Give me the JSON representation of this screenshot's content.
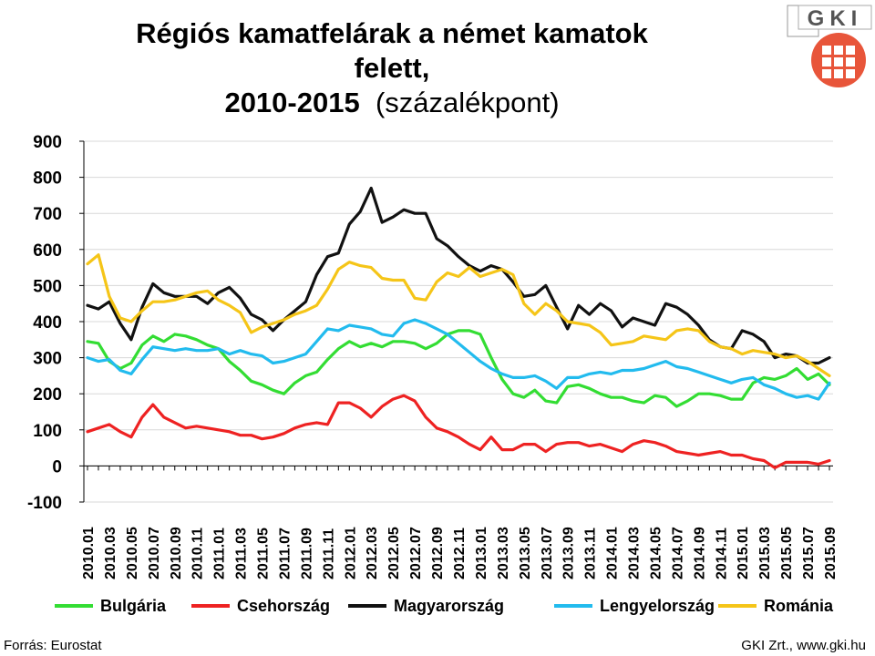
{
  "title_line1": "Régiós kamatfelárak a német kamatok felett,",
  "title_line2_bold": "2010-2015",
  "title_line2_rest": "(százalékpont)",
  "logo": {
    "text": "GKI",
    "icon": "gki-logo-icon",
    "accent": "#e8553a"
  },
  "source": "Forrás: Eurostat",
  "credit": "GKI Zrt., www.gki.hu",
  "chart_data": {
    "type": "line",
    "ylim": [
      -100,
      900
    ],
    "yticks": [
      "900",
      "800",
      "700",
      "600",
      "500",
      "400",
      "300",
      "200",
      "100",
      "0",
      "-100"
    ],
    "ytick_values": [
      900,
      800,
      700,
      600,
      500,
      400,
      300,
      200,
      100,
      0,
      -100
    ],
    "xtick_labels": [
      "2010.01",
      "2010.03",
      "2010.05",
      "2010.07",
      "2010.09",
      "2010.11",
      "2011.01",
      "2011.03",
      "2011.05",
      "2011.07",
      "2011.09",
      "2011.11",
      "2012.01",
      "2012.03",
      "2012.05",
      "2012.07",
      "2012.09",
      "2012.11",
      "2013.01",
      "2013.03",
      "2013.05",
      "2013.07",
      "2013.09",
      "2013.11",
      "2014.01",
      "2014.03",
      "2014.05",
      "2014.07",
      "2014.09",
      "2014.11",
      "2015.01",
      "2015.03",
      "2015.05",
      "2015.07",
      "2015.09"
    ],
    "months": 69,
    "grid": true,
    "legend_position": "bottom",
    "series": [
      {
        "name": "Bulgária",
        "color": "#33dd33",
        "values": [
          345,
          340,
          290,
          270,
          285,
          335,
          360,
          345,
          365,
          360,
          350,
          335,
          325,
          290,
          265,
          235,
          225,
          210,
          200,
          230,
          250,
          260,
          295,
          325,
          345,
          330,
          340,
          330,
          345,
          345,
          340,
          325,
          340,
          365,
          375,
          375,
          365,
          300,
          240,
          200,
          190,
          210,
          180,
          175,
          220,
          225,
          215,
          200,
          190,
          190,
          180,
          175,
          195,
          190,
          165,
          180,
          200,
          200,
          195,
          185,
          185,
          230,
          245,
          240,
          250,
          270,
          240,
          255,
          225
        ]
      },
      {
        "name": "Csehország",
        "color": "#ee2222",
        "values": [
          95,
          105,
          115,
          95,
          80,
          135,
          170,
          135,
          120,
          105,
          110,
          105,
          100,
          95,
          85,
          85,
          75,
          80,
          90,
          105,
          115,
          120,
          115,
          175,
          175,
          160,
          135,
          165,
          185,
          195,
          180,
          135,
          105,
          95,
          80,
          60,
          45,
          80,
          45,
          45,
          60,
          60,
          40,
          60,
          65,
          65,
          55,
          60,
          50,
          40,
          60,
          70,
          65,
          55,
          40,
          35,
          30,
          35,
          40,
          30,
          30,
          20,
          15,
          -5,
          10,
          10,
          10,
          5,
          15
        ]
      },
      {
        "name": "Magyarország",
        "color": "#111111",
        "values": [
          445,
          435,
          455,
          395,
          350,
          440,
          505,
          480,
          470,
          470,
          470,
          450,
          480,
          495,
          465,
          420,
          405,
          375,
          405,
          430,
          455,
          530,
          580,
          590,
          670,
          705,
          770,
          675,
          690,
          710,
          700,
          700,
          630,
          610,
          580,
          555,
          540,
          555,
          545,
          510,
          470,
          475,
          500,
          440,
          380,
          445,
          420,
          450,
          430,
          385,
          410,
          400,
          390,
          450,
          440,
          420,
          390,
          350,
          330,
          325,
          375,
          365,
          345,
          300,
          310,
          305,
          285,
          285,
          300
        ]
      },
      {
        "name": "Lengyelország",
        "color": "#22bbee",
        "values": [
          300,
          290,
          295,
          265,
          255,
          295,
          330,
          325,
          320,
          325,
          320,
          320,
          325,
          310,
          320,
          310,
          305,
          285,
          290,
          300,
          310,
          345,
          380,
          375,
          390,
          385,
          380,
          365,
          360,
          395,
          405,
          395,
          380,
          365,
          340,
          315,
          290,
          270,
          255,
          245,
          245,
          250,
          235,
          215,
          245,
          245,
          255,
          260,
          255,
          265,
          265,
          270,
          280,
          290,
          275,
          270,
          260,
          250,
          240,
          230,
          240,
          245,
          225,
          215,
          200,
          190,
          195,
          185,
          230
        ]
      },
      {
        "name": "Románia",
        "color": "#f5c518",
        "values": [
          560,
          585,
          470,
          410,
          400,
          430,
          455,
          455,
          460,
          470,
          480,
          485,
          460,
          445,
          425,
          370,
          385,
          395,
          405,
          420,
          430,
          445,
          490,
          545,
          565,
          555,
          550,
          520,
          515,
          515,
          465,
          460,
          510,
          535,
          525,
          550,
          525,
          535,
          545,
          530,
          450,
          420,
          450,
          430,
          400,
          395,
          390,
          370,
          335,
          340,
          345,
          360,
          355,
          350,
          375,
          380,
          375,
          345,
          330,
          325,
          310,
          320,
          315,
          310,
          300,
          305,
          290,
          270,
          250
        ]
      }
    ]
  }
}
